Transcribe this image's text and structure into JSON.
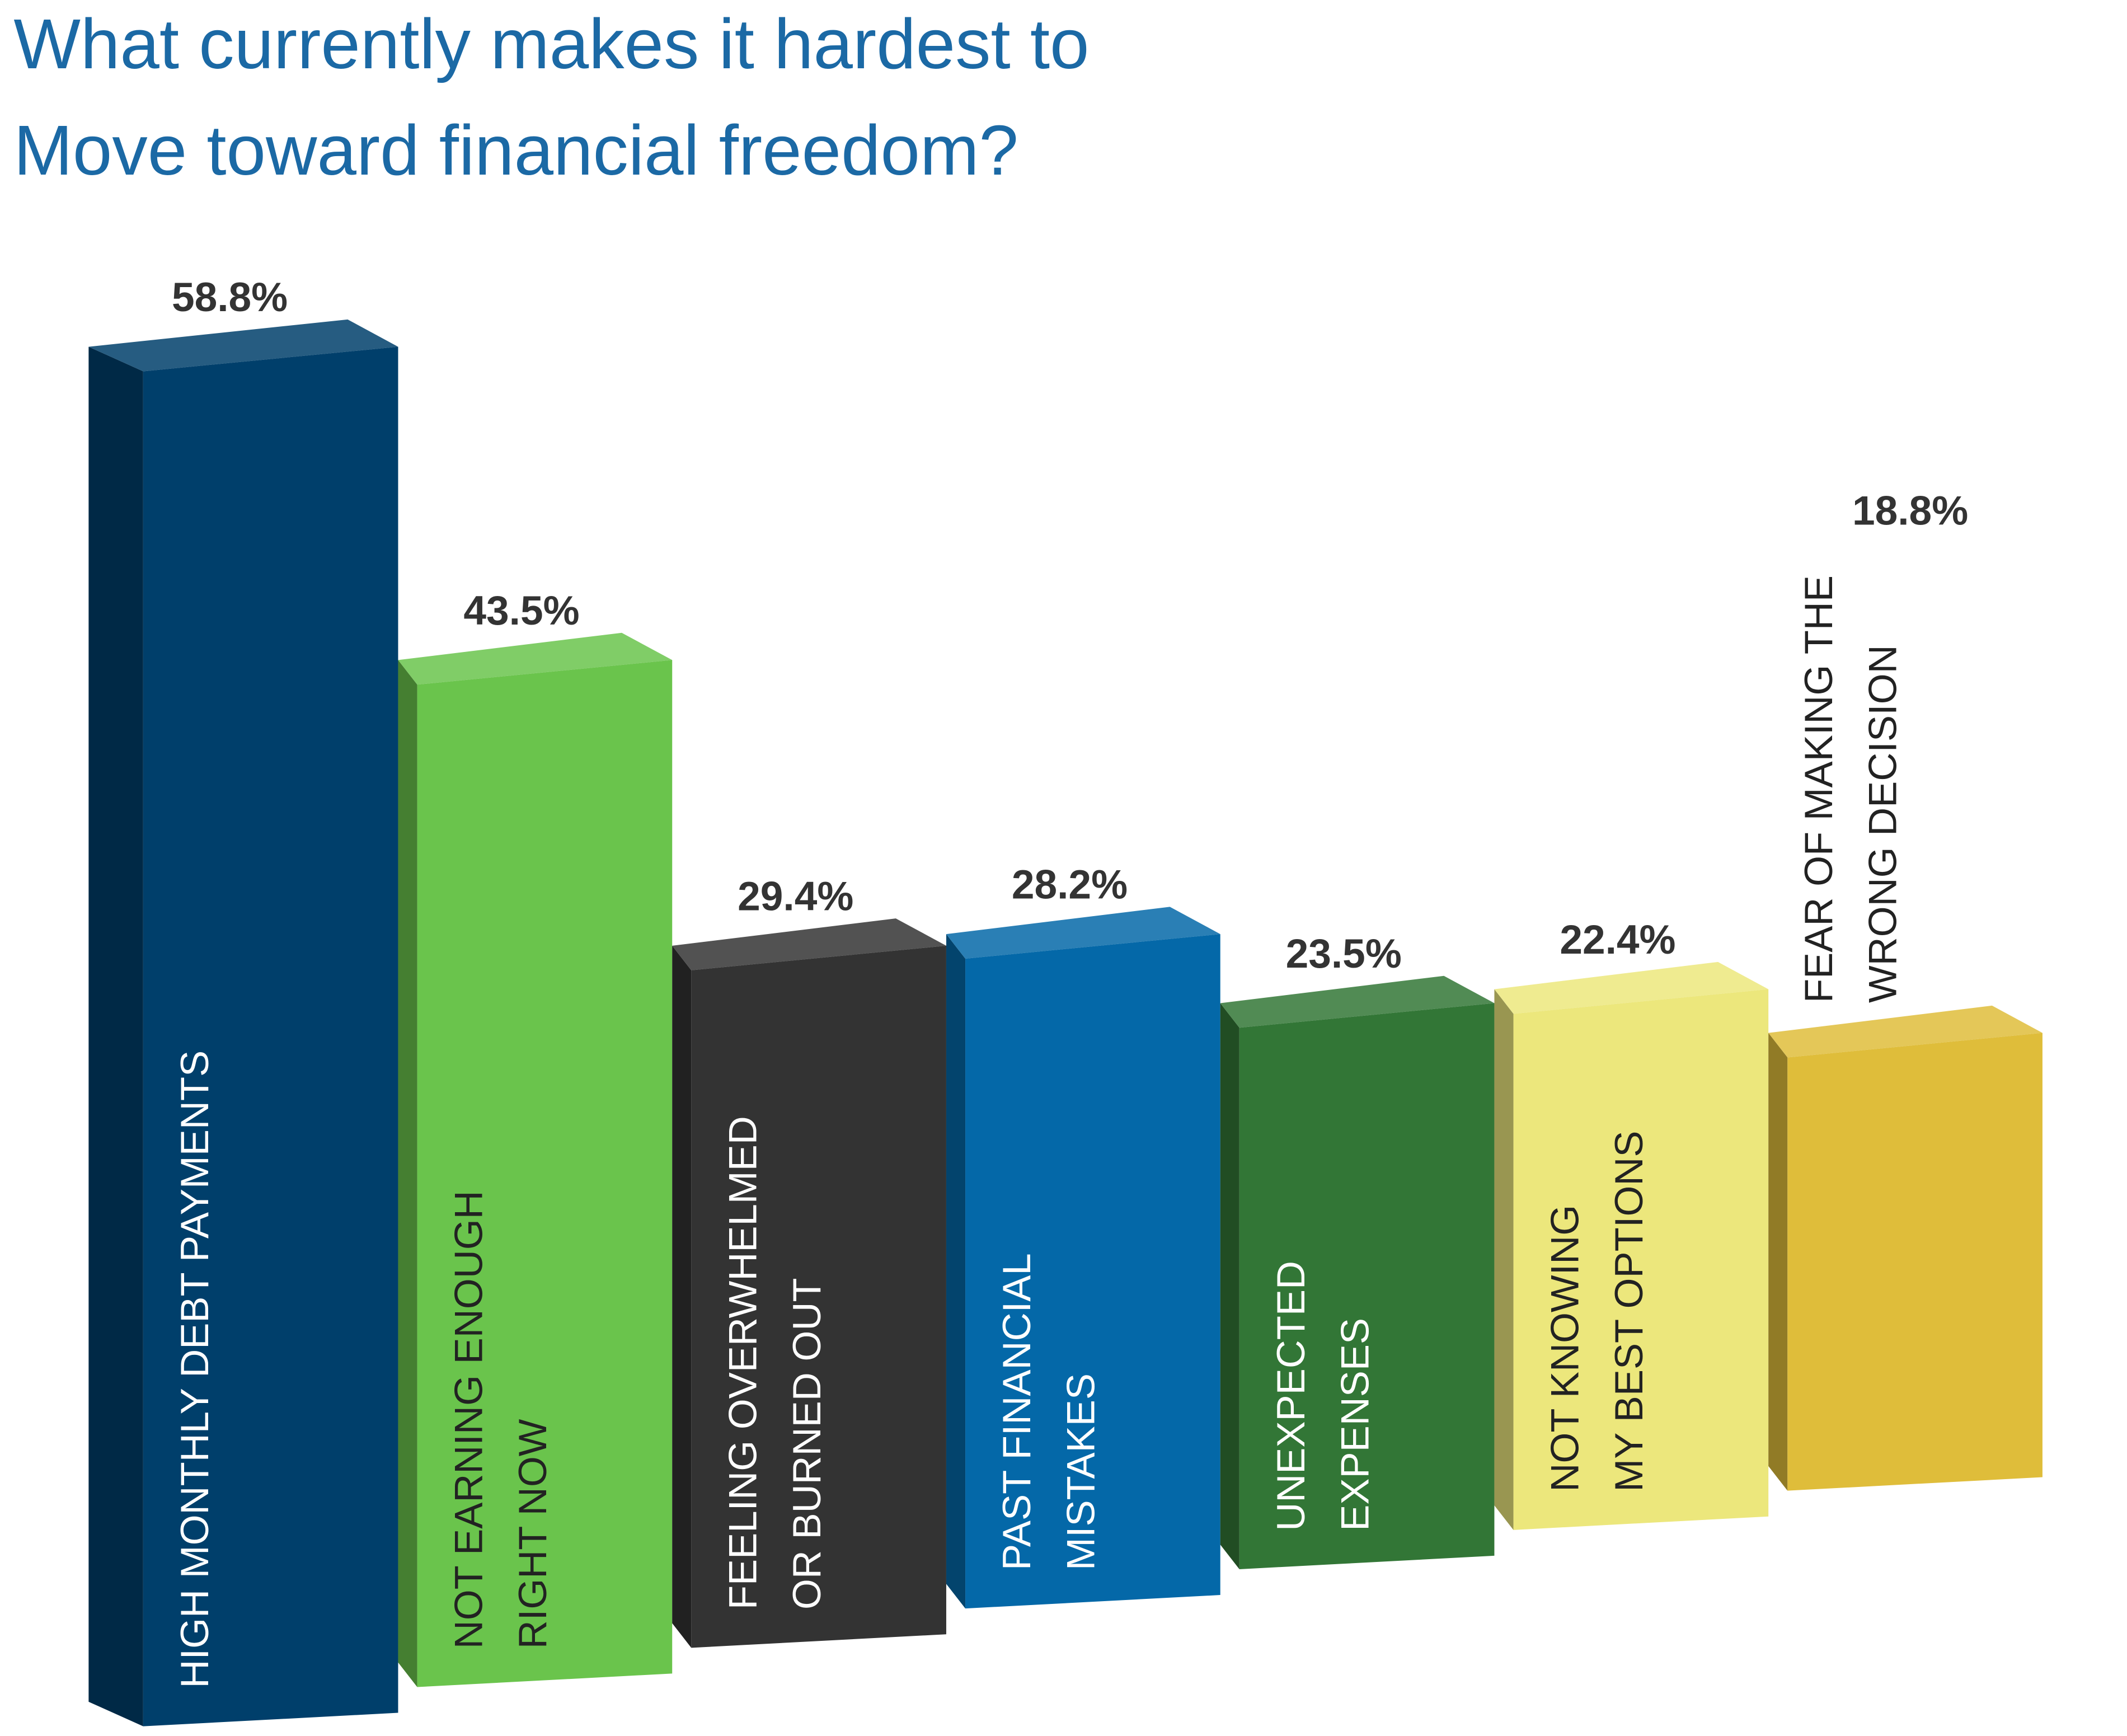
{
  "chart_data": {
    "type": "bar",
    "title": [
      "What currently makes it hardest to",
      "Move toward financial freedom?"
    ],
    "categories": [
      [
        "HIGH MONTHLY DEBT PAYMENTS"
      ],
      [
        "NOT EARNING ENOUGH",
        "RIGHT NOW"
      ],
      [
        "FEELING OVERWHELMED",
        "OR BURNED OUT"
      ],
      [
        "PAST FINANCIAL",
        "MISTAKES"
      ],
      [
        "UNEXPECTED",
        "EXPENSES"
      ],
      [
        "NOT KNOWING",
        "MY BEST OPTIONS"
      ],
      [
        "FEAR OF MAKING THE",
        "WRONG DECISION"
      ]
    ],
    "values": [
      58.8,
      43.5,
      29.4,
      28.2,
      23.5,
      22.4,
      18.8
    ],
    "value_labels": [
      "58.8%",
      "43.5%",
      "29.4%",
      "28.2%",
      "23.5%",
      "22.4%",
      "18.8%"
    ],
    "colors": [
      "#003f6b",
      "#6ac44c",
      "#333333",
      "#0468a8",
      "#327636",
      "#ece77c",
      "#dfbd3a"
    ]
  }
}
